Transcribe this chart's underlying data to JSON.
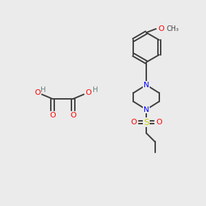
{
  "background_color": "#EBEBEB",
  "atom_colors": {
    "C": "#404040",
    "N": "#0000FF",
    "O": "#FF0000",
    "S": "#CCCC00",
    "H": "#608080"
  },
  "bond_color": "#404040",
  "line_width": 1.5
}
